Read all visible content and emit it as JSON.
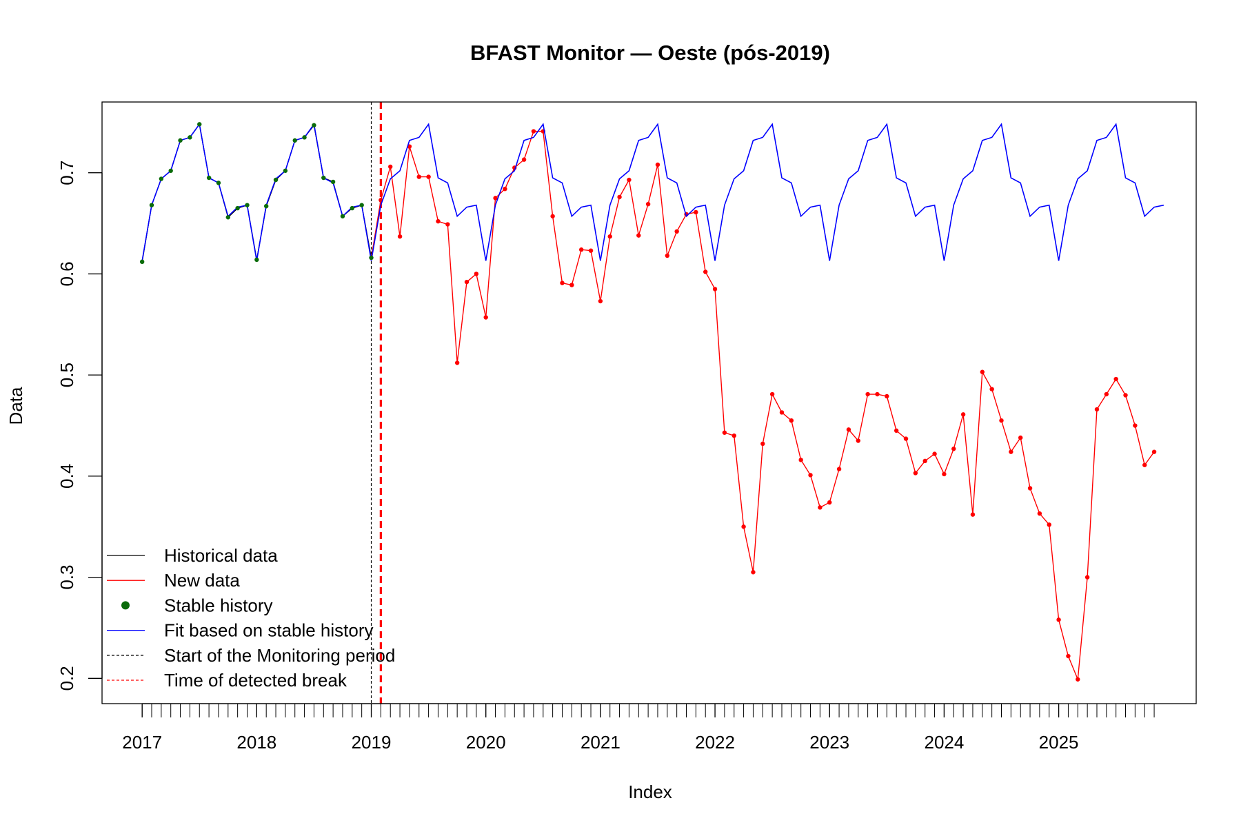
{
  "chart_data": {
    "type": "line",
    "title": "BFAST Monitor — Oeste (pós-2019)",
    "xlabel": "Index",
    "ylabel": "Data",
    "xlim": [
      2016.65,
      2026.2
    ],
    "ylim": [
      0.175,
      0.77
    ],
    "x_ticks": [
      2017,
      2018,
      2019,
      2020,
      2021,
      2022,
      2023,
      2024,
      2025
    ],
    "x_tick_labels": [
      "2017",
      "2018",
      "2019",
      "2020",
      "2021",
      "2022",
      "2023",
      "2024",
      "2025"
    ],
    "y_ticks": [
      0.2,
      0.3,
      0.4,
      0.5,
      0.6,
      0.7
    ],
    "y_tick_labels": [
      "0.2",
      "0.3",
      "0.4",
      "0.5",
      "0.6",
      "0.7"
    ],
    "x_start": 2017.0,
    "x_step": 0.0833333,
    "monitoring_start": 2019.0,
    "break_time": 2019.0833,
    "history_values": [
      0.612,
      0.668,
      0.694,
      0.702,
      0.732,
      0.735,
      0.748,
      0.695,
      0.69,
      0.656,
      0.665,
      0.668,
      0.614,
      0.667,
      0.693,
      0.702,
      0.732,
      0.735,
      0.747,
      0.695,
      0.691,
      0.657,
      0.665,
      0.668,
      0.616
    ],
    "new_values": [
      0.616,
      0.673,
      0.706,
      0.637,
      0.726,
      0.696,
      0.696,
      0.652,
      0.649,
      0.512,
      0.592,
      0.6,
      0.557,
      0.675,
      0.684,
      0.705,
      0.713,
      0.741,
      0.741,
      0.657,
      0.591,
      0.589,
      0.624,
      0.623,
      0.573,
      0.637,
      0.676,
      0.693,
      0.638,
      0.669,
      0.708,
      0.618,
      0.642,
      0.659,
      0.661,
      0.602,
      0.585,
      0.443,
      0.44,
      0.35,
      0.305,
      0.432,
      0.481,
      0.463,
      0.455,
      0.416,
      0.401,
      0.369,
      0.374,
      0.407,
      0.446,
      0.435,
      0.481,
      0.481,
      0.479,
      0.445,
      0.437,
      0.403,
      0.415,
      0.422,
      0.402,
      0.427,
      0.461,
      0.362,
      0.503,
      0.486,
      0.455,
      0.424,
      0.438,
      0.388,
      0.363,
      0.352,
      0.258,
      0.222,
      0.199,
      0.3,
      0.466,
      0.481,
      0.496,
      0.48,
      0.45,
      0.411,
      0.424
    ],
    "fit_cycle": [
      0.613,
      0.668,
      0.694,
      0.702,
      0.732,
      0.735,
      0.748,
      0.695,
      0.69,
      0.657,
      0.666,
      0.668
    ],
    "fit_points": 108,
    "series": [
      {
        "name": "Historical data",
        "color": "#000000"
      },
      {
        "name": "New data",
        "color": "#ff0000"
      },
      {
        "name": "Stable history",
        "color": "#0a6b0a"
      },
      {
        "name": "Fit based on stable history",
        "color": "#0000ff"
      },
      {
        "name": "Start of the Monitoring period",
        "color": "#000000"
      },
      {
        "name": "Time of detected break",
        "color": "#ff0000"
      }
    ],
    "legend_position": "bottom-left",
    "grid": false
  }
}
